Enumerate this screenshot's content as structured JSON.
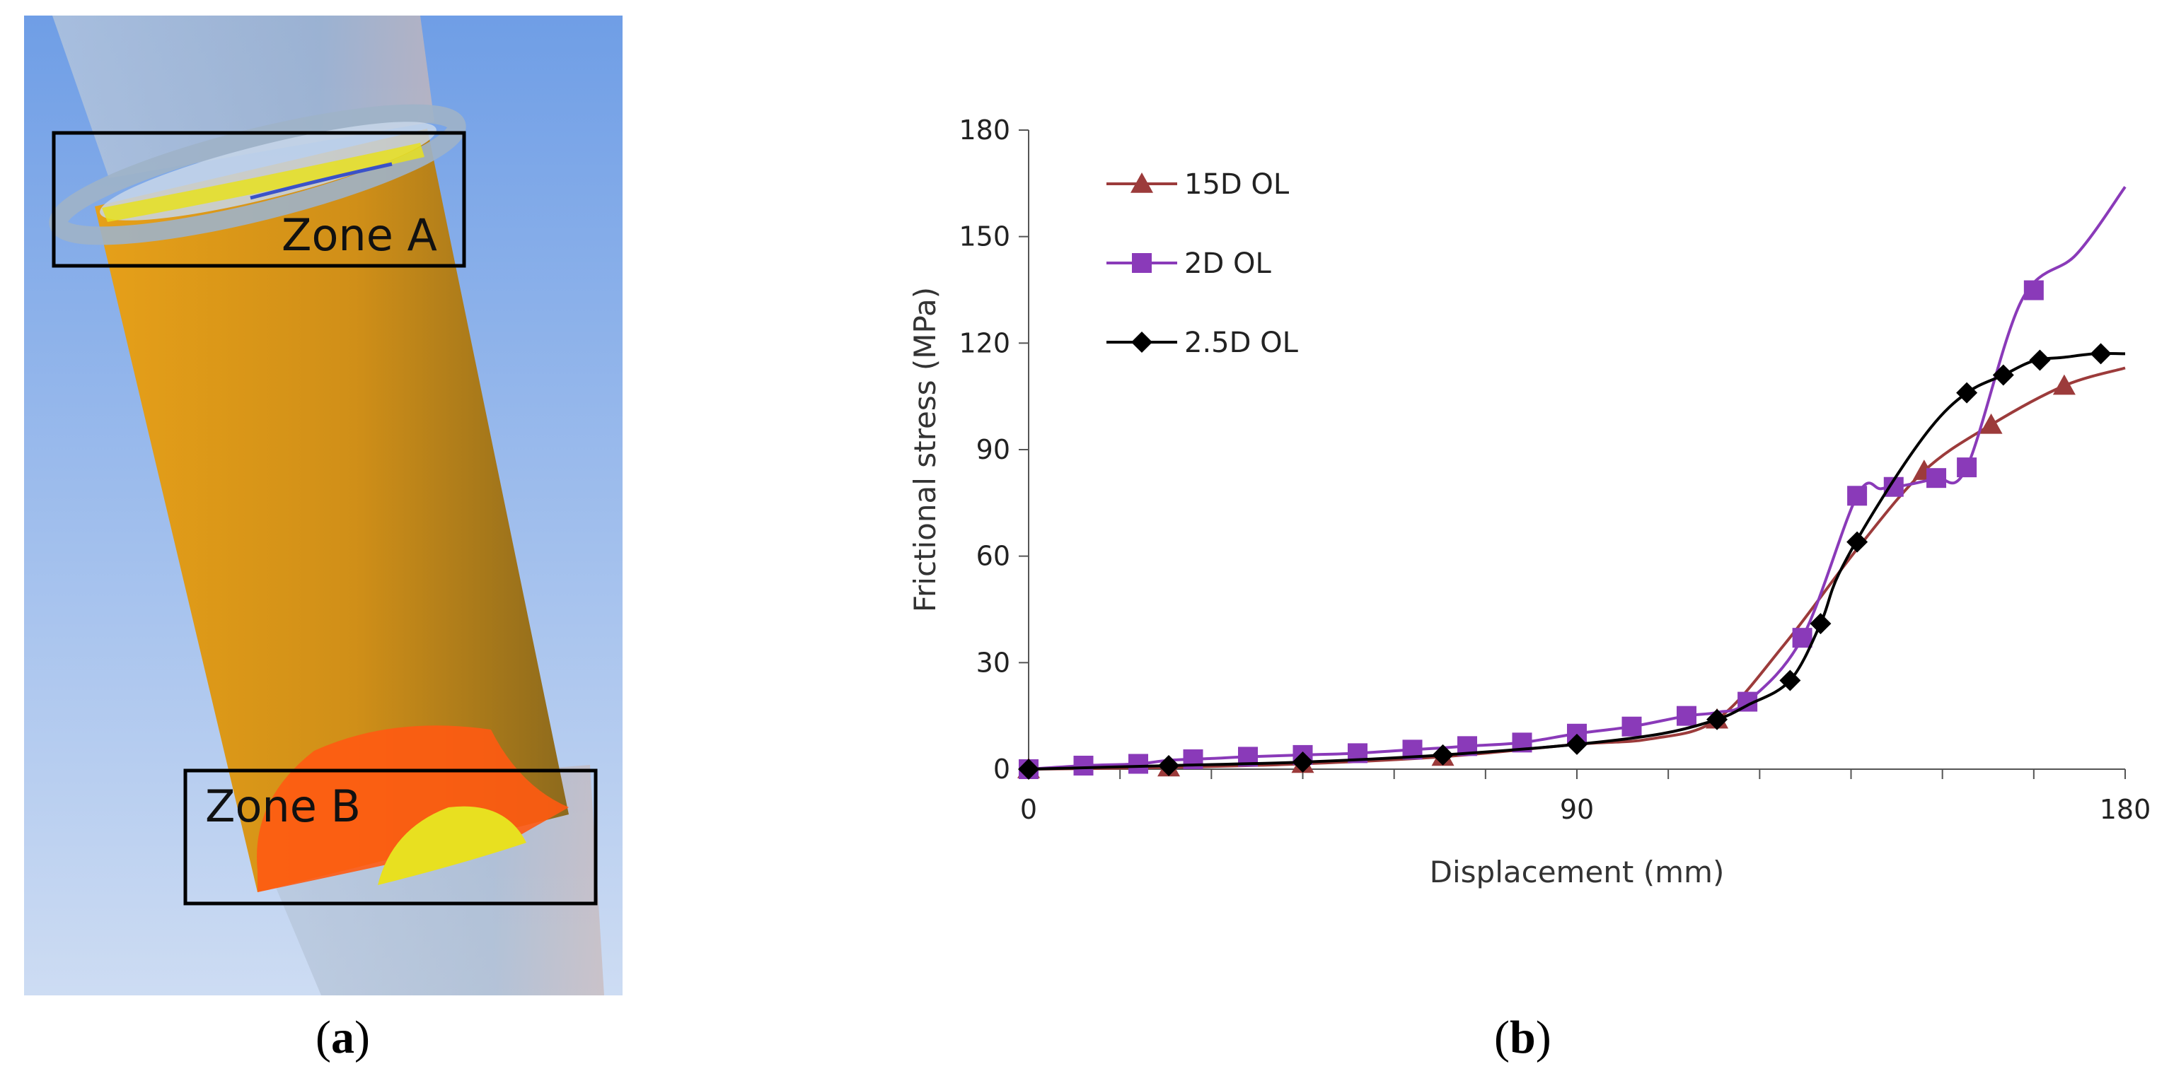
{
  "panel_a": {
    "zone_a_label": "Zone A",
    "zone_b_label": "Zone B",
    "caption_letter": "a",
    "colors": {
      "background_top": "#6f9ee6",
      "background_bottom": "#c9d9f2",
      "tube": "#d79a1c",
      "contact_high": "#ff4a10",
      "contact_mid": "#e8e020"
    }
  },
  "panel_b": {
    "caption_letter": "b"
  },
  "chart_data": {
    "type": "line",
    "title": "",
    "xlabel": "Displacement (mm)",
    "ylabel": "Frictional stress (MPa)",
    "xlim": [
      0,
      180
    ],
    "ylim": [
      0,
      180
    ],
    "xticks": [
      0,
      90,
      180
    ],
    "yticks": [
      0,
      30,
      60,
      90,
      120,
      150,
      180
    ],
    "grid": false,
    "legend_position": "top-left",
    "series": [
      {
        "name": "15D OL",
        "color": "#9c3b3b",
        "marker": "triangle",
        "x": [
          0,
          23,
          45,
          68,
          90,
          102,
          113,
          124,
          136,
          147,
          158,
          170,
          180
        ],
        "y": [
          0,
          0.5,
          1.5,
          3.5,
          7,
          8.5,
          14,
          35,
          62,
          84,
          97,
          108,
          113
        ],
        "marker_x": [
          0,
          23,
          45,
          68,
          113,
          147,
          158,
          170
        ]
      },
      {
        "name": "2D OL",
        "color": "#8a3ab9",
        "marker": "square",
        "x": [
          0,
          9,
          18,
          23,
          30,
          36,
          45,
          54,
          63,
          68,
          72,
          81,
          90,
          99,
          108,
          113,
          118,
          127,
          136,
          140,
          144,
          149,
          154,
          163,
          172,
          180
        ],
        "y": [
          0,
          1,
          1.5,
          2.5,
          3,
          3.5,
          4,
          4.5,
          5.5,
          6,
          6.5,
          7.5,
          10,
          12,
          15,
          16,
          19,
          37,
          77,
          79,
          80,
          82,
          85,
          132,
          145,
          164
        ],
        "marker_x": [
          0,
          9,
          18,
          27,
          36,
          45,
          54,
          63,
          72,
          81,
          90,
          99,
          108,
          118,
          127,
          136,
          142,
          149,
          154,
          165
        ]
      },
      {
        "name": "2.5D OL",
        "color": "#000000",
        "marker": "diamond",
        "x": [
          0,
          23,
          45,
          68,
          90,
          104,
          113,
          118,
          125,
          130,
          133,
          140,
          148,
          154,
          160,
          165,
          170,
          175,
          180
        ],
        "y": [
          0,
          1,
          2,
          4,
          7,
          10,
          14,
          18,
          25,
          41,
          55,
          76,
          96,
          106,
          111,
          115,
          116,
          117,
          117
        ],
        "marker_x": [
          0,
          23,
          45,
          68,
          90,
          113,
          125,
          130,
          136,
          154,
          160,
          166,
          176
        ]
      }
    ]
  }
}
